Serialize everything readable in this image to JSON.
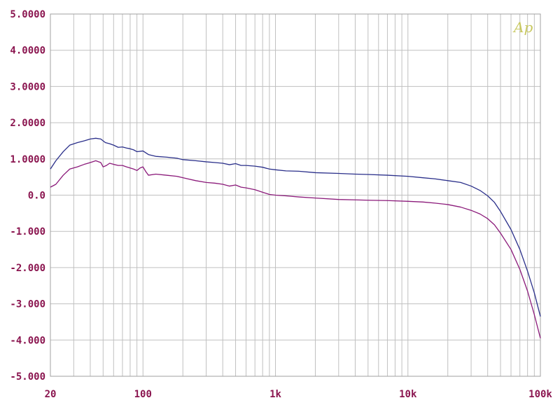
{
  "chart_data": {
    "type": "line",
    "title": "",
    "xlabel": "",
    "ylabel": "",
    "x_scale": "log",
    "xlim": [
      20,
      100000
    ],
    "ylim": [
      -5,
      5
    ],
    "grid": true,
    "x_tick_labels": [
      {
        "value": 20,
        "label": "20"
      },
      {
        "value": 100,
        "label": "100"
      },
      {
        "value": 1000,
        "label": "1k"
      },
      {
        "value": 10000,
        "label": "10k"
      },
      {
        "value": 100000,
        "label": "100k"
      }
    ],
    "y_tick_labels": [
      {
        "value": 5,
        "label": "5.0000"
      },
      {
        "value": 4,
        "label": "4.0000"
      },
      {
        "value": 3,
        "label": "3.0000"
      },
      {
        "value": 2,
        "label": "2.0000"
      },
      {
        "value": 1,
        "label": "1.0000"
      },
      {
        "value": 0,
        "label": "0.0"
      },
      {
        "value": -1,
        "label": "-1.000"
      },
      {
        "value": -2,
        "label": "-2.000"
      },
      {
        "value": -3,
        "label": "-3.000"
      },
      {
        "value": -4,
        "label": "-4.000"
      },
      {
        "value": -5,
        "label": "-5.000"
      }
    ],
    "logo_text": "Ap",
    "colors": {
      "grid": "#c0c0c0",
      "frame": "#a0a0a0",
      "tick_label": "#8b1650",
      "logo": "#c8c860"
    },
    "series": [
      {
        "color": "#2a2f8a",
        "points": [
          [
            20,
            0.72
          ],
          [
            22,
            0.95
          ],
          [
            25,
            1.2
          ],
          [
            28,
            1.38
          ],
          [
            32,
            1.45
          ],
          [
            36,
            1.5
          ],
          [
            40,
            1.55
          ],
          [
            44,
            1.57
          ],
          [
            48,
            1.55
          ],
          [
            52,
            1.45
          ],
          [
            56,
            1.42
          ],
          [
            60,
            1.38
          ],
          [
            65,
            1.32
          ],
          [
            70,
            1.33
          ],
          [
            75,
            1.3
          ],
          [
            80,
            1.28
          ],
          [
            85,
            1.25
          ],
          [
            90,
            1.2
          ],
          [
            100,
            1.22
          ],
          [
            110,
            1.12
          ],
          [
            125,
            1.07
          ],
          [
            150,
            1.05
          ],
          [
            180,
            1.02
          ],
          [
            200,
            0.98
          ],
          [
            250,
            0.95
          ],
          [
            300,
            0.92
          ],
          [
            350,
            0.9
          ],
          [
            400,
            0.88
          ],
          [
            450,
            0.84
          ],
          [
            500,
            0.87
          ],
          [
            550,
            0.82
          ],
          [
            600,
            0.82
          ],
          [
            700,
            0.8
          ],
          [
            800,
            0.77
          ],
          [
            900,
            0.72
          ],
          [
            1000,
            0.7
          ],
          [
            1200,
            0.67
          ],
          [
            1500,
            0.66
          ],
          [
            2000,
            0.62
          ],
          [
            3000,
            0.6
          ],
          [
            4000,
            0.58
          ],
          [
            5000,
            0.57
          ],
          [
            7000,
            0.55
          ],
          [
            10000,
            0.52
          ],
          [
            13000,
            0.48
          ],
          [
            16000,
            0.45
          ],
          [
            20000,
            0.4
          ],
          [
            25000,
            0.35
          ],
          [
            30000,
            0.25
          ],
          [
            35000,
            0.13
          ],
          [
            40000,
            -0.02
          ],
          [
            45000,
            -0.2
          ],
          [
            50000,
            -0.45
          ],
          [
            60000,
            -0.95
          ],
          [
            70000,
            -1.5
          ],
          [
            80000,
            -2.1
          ],
          [
            90000,
            -2.7
          ],
          [
            100000,
            -3.35
          ]
        ]
      },
      {
        "color": "#8b1a7a",
        "points": [
          [
            20,
            0.22
          ],
          [
            22,
            0.3
          ],
          [
            25,
            0.55
          ],
          [
            28,
            0.72
          ],
          [
            32,
            0.78
          ],
          [
            36,
            0.85
          ],
          [
            40,
            0.9
          ],
          [
            44,
            0.95
          ],
          [
            48,
            0.9
          ],
          [
            50,
            0.78
          ],
          [
            53,
            0.82
          ],
          [
            56,
            0.88
          ],
          [
            60,
            0.85
          ],
          [
            65,
            0.82
          ],
          [
            70,
            0.82
          ],
          [
            75,
            0.78
          ],
          [
            80,
            0.75
          ],
          [
            85,
            0.72
          ],
          [
            90,
            0.68
          ],
          [
            95,
            0.75
          ],
          [
            100,
            0.78
          ],
          [
            105,
            0.65
          ],
          [
            110,
            0.55
          ],
          [
            125,
            0.58
          ],
          [
            150,
            0.55
          ],
          [
            180,
            0.52
          ],
          [
            200,
            0.48
          ],
          [
            250,
            0.4
          ],
          [
            300,
            0.35
          ],
          [
            350,
            0.33
          ],
          [
            400,
            0.3
          ],
          [
            450,
            0.25
          ],
          [
            500,
            0.28
          ],
          [
            550,
            0.22
          ],
          [
            600,
            0.2
          ],
          [
            700,
            0.15
          ],
          [
            800,
            0.08
          ],
          [
            900,
            0.02
          ],
          [
            1000,
            0.0
          ],
          [
            1200,
            -0.02
          ],
          [
            1500,
            -0.05
          ],
          [
            2000,
            -0.08
          ],
          [
            3000,
            -0.12
          ],
          [
            4000,
            -0.13
          ],
          [
            5000,
            -0.14
          ],
          [
            7000,
            -0.15
          ],
          [
            10000,
            -0.17
          ],
          [
            13000,
            -0.19
          ],
          [
            16000,
            -0.22
          ],
          [
            20000,
            -0.26
          ],
          [
            25000,
            -0.33
          ],
          [
            30000,
            -0.42
          ],
          [
            35000,
            -0.52
          ],
          [
            40000,
            -0.65
          ],
          [
            45000,
            -0.82
          ],
          [
            50000,
            -1.05
          ],
          [
            60000,
            -1.5
          ],
          [
            70000,
            -2.05
          ],
          [
            80000,
            -2.65
          ],
          [
            90000,
            -3.3
          ],
          [
            100000,
            -3.95
          ]
        ]
      }
    ]
  }
}
